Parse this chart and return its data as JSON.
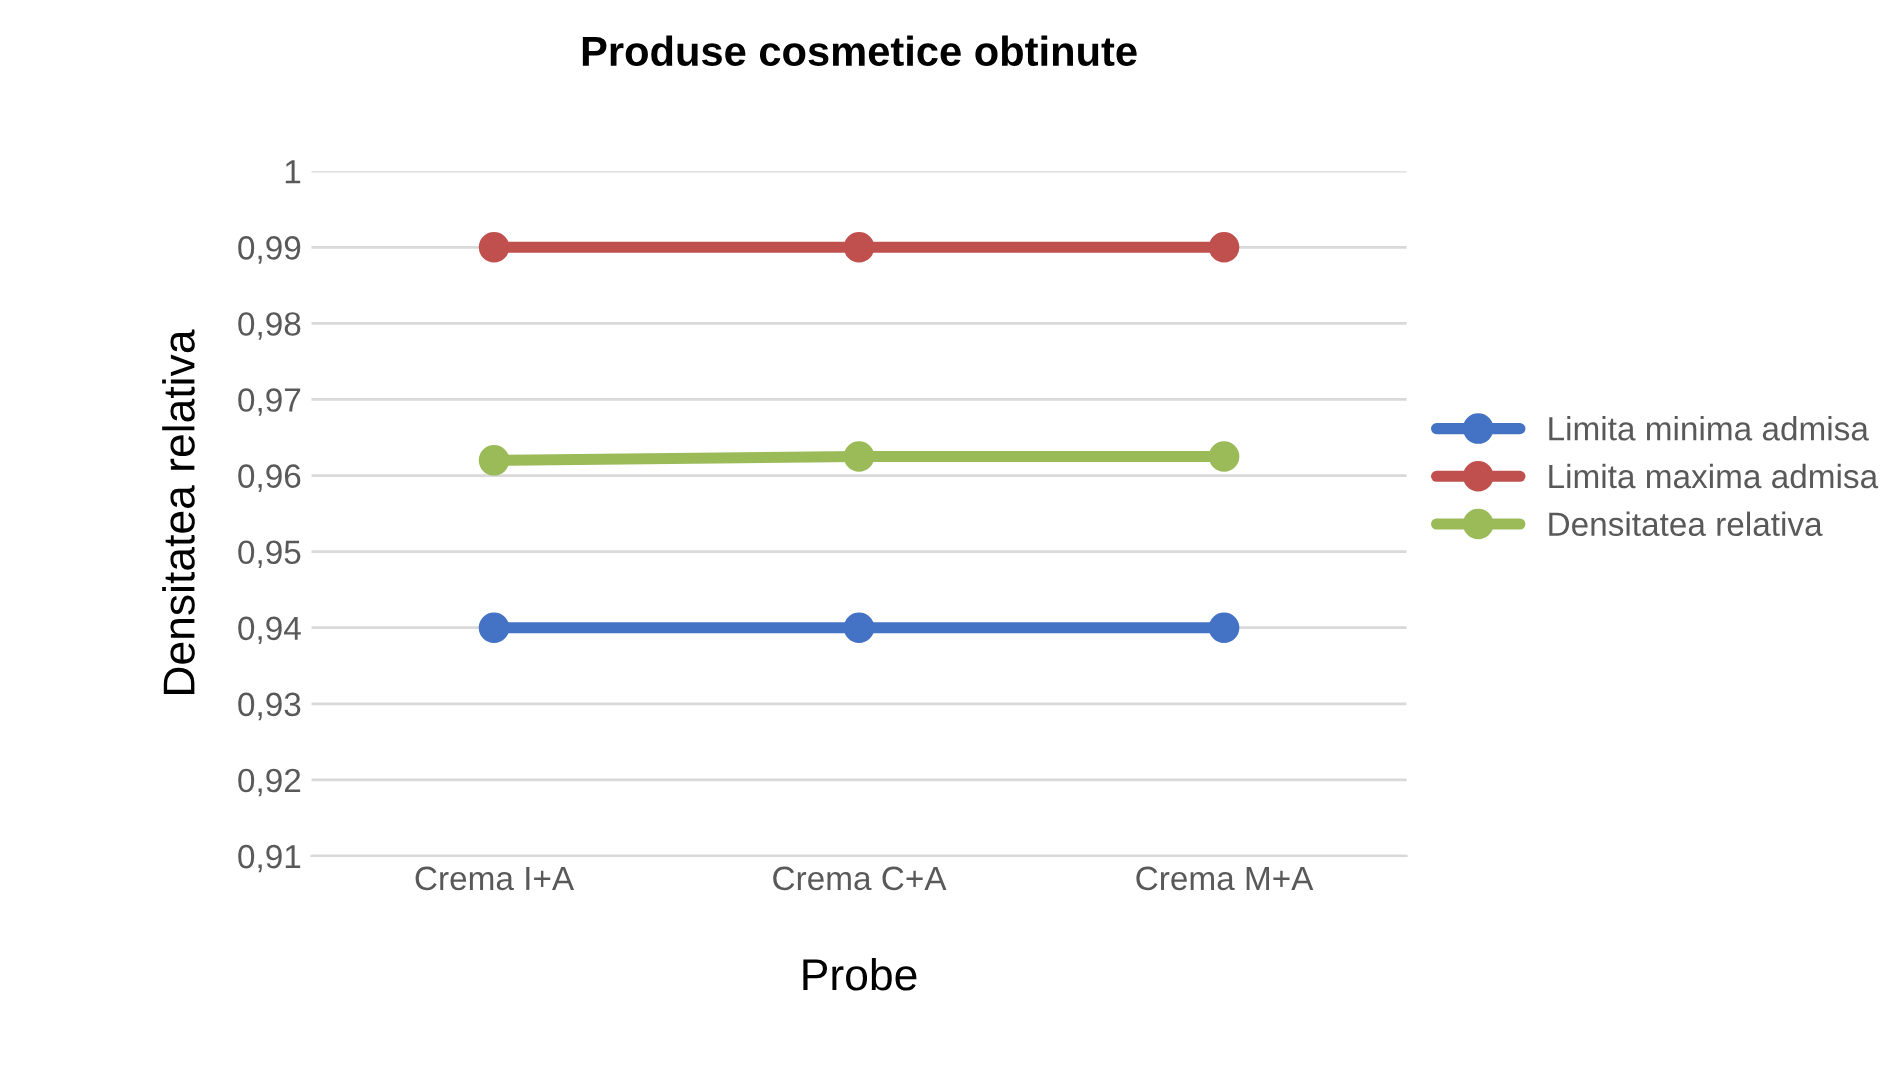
{
  "chart_data": {
    "type": "line",
    "title": "Produse cosmetice obtinute",
    "xlabel": "Probe",
    "ylabel": "Densitatea relativa",
    "categories": [
      "Crema I+A",
      "Crema C+A",
      "Crema M+A"
    ],
    "series": [
      {
        "name": "Limita minima admisa",
        "color": "#4472c4",
        "values": [
          0.94,
          0.94,
          0.94
        ]
      },
      {
        "name": "Limita maxima admisa",
        "color": "#c0504d",
        "values": [
          0.99,
          0.99,
          0.99
        ]
      },
      {
        "name": "Densitatea relativa",
        "color": "#9bbb59",
        "values": [
          0.962,
          0.9625,
          0.9625
        ]
      }
    ],
    "ylim": [
      0.91,
      1.0
    ],
    "yticks": [
      {
        "value": 0.91,
        "label": "0,91"
      },
      {
        "value": 0.92,
        "label": "0,92"
      },
      {
        "value": 0.93,
        "label": "0,93"
      },
      {
        "value": 0.94,
        "label": "0,94"
      },
      {
        "value": 0.95,
        "label": "0,95"
      },
      {
        "value": 0.96,
        "label": "0,96"
      },
      {
        "value": 0.97,
        "label": "0,97"
      },
      {
        "value": 0.98,
        "label": "0,98"
      },
      {
        "value": 0.99,
        "label": "0,99"
      },
      {
        "value": 1.0,
        "label": "1"
      }
    ],
    "grid": "y",
    "legend": "right",
    "marker": "circle"
  }
}
